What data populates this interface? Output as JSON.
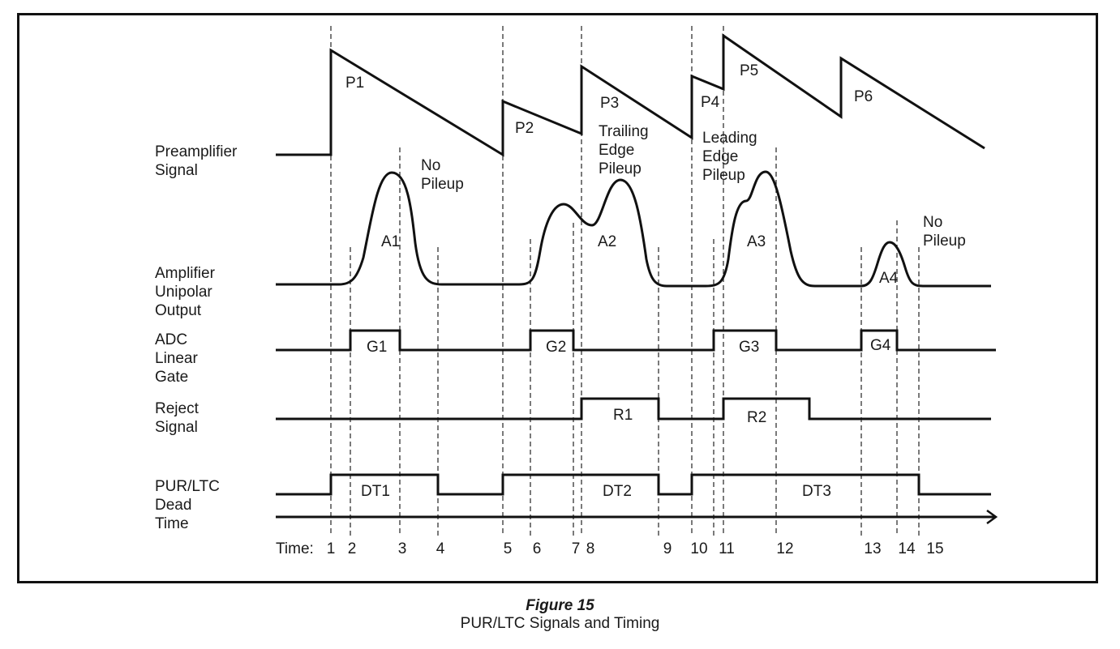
{
  "row_labels": {
    "preamp": [
      "Preamplifier",
      "Signal"
    ],
    "amp": [
      "Amplifier",
      "Unipolar",
      "Output"
    ],
    "gate": [
      "ADC",
      "Linear",
      "Gate"
    ],
    "reject": [
      "Reject",
      "Signal"
    ],
    "deadtime": [
      "PUR/LTC",
      "Dead",
      "Time"
    ]
  },
  "pulse_labels": [
    "P1",
    "P2",
    "P3",
    "P4",
    "P5",
    "P6"
  ],
  "amp_labels": [
    "A1",
    "A2",
    "A3",
    "A4"
  ],
  "gate_labels": [
    "G1",
    "G2",
    "G3",
    "G4"
  ],
  "reject_labels": [
    "R1",
    "R2"
  ],
  "deadtime_labels": [
    "DT1",
    "DT2",
    "DT3"
  ],
  "annotations": {
    "no_pileup_1": [
      "No",
      "Pileup"
    ],
    "trailing": [
      "Trailing",
      "Edge",
      "Pileup"
    ],
    "leading": [
      "Leading",
      "Edge",
      "Pileup"
    ],
    "no_pileup_2": [
      "No",
      "Pileup"
    ]
  },
  "time_axis": {
    "prefix": "Time:",
    "ticks": [
      "1",
      "2",
      "3",
      "4",
      "5",
      "6",
      "7",
      "8",
      "9",
      "10",
      "11",
      "12",
      "13",
      "14",
      "15"
    ]
  },
  "caption": {
    "title": "Figure 15",
    "subtitle": "PUR/LTC Signals and Timing"
  }
}
